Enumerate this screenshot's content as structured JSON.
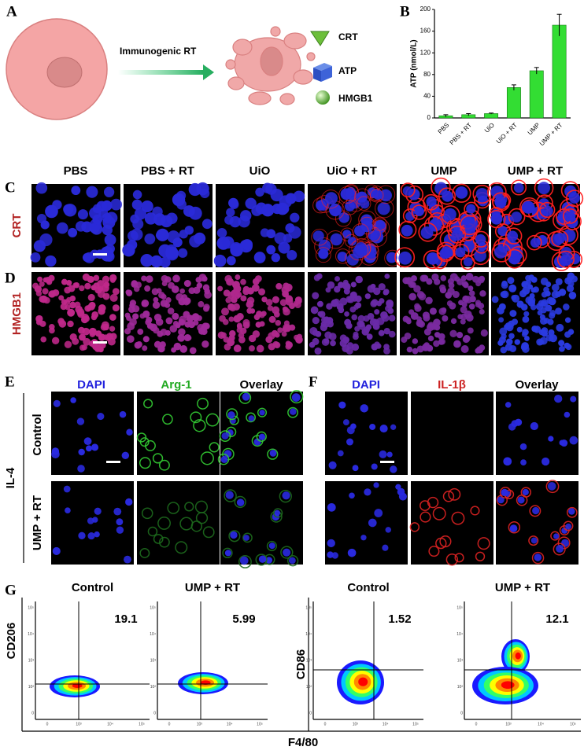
{
  "panel_labels": [
    "A",
    "B",
    "C",
    "D",
    "E",
    "F",
    "G"
  ],
  "panel_a": {
    "arrow_label": "Immunogenic RT",
    "legend": [
      "CRT",
      "ATP",
      "HMGB1"
    ]
  },
  "chart_data": {
    "type": "bar",
    "ylabel": "ATP (nmol/L)",
    "categories": [
      "PBS",
      "PBS + RT",
      "UiO",
      "UiO + RT",
      "UMP",
      "UMP + RT"
    ],
    "values": [
      4,
      6,
      8,
      56,
      87,
      171
    ],
    "errors": [
      2,
      2,
      1,
      5,
      6,
      20
    ],
    "color": "#33dd33",
    "ylim": [
      0,
      200
    ],
    "yticks": [
      0,
      40,
      80,
      120,
      160,
      200
    ]
  },
  "panel_cd": {
    "columns": [
      "PBS",
      "PBS + RT",
      "UiO",
      "UiO + RT",
      "UMP",
      "UMP + RT"
    ],
    "rows": [
      "CRT",
      "HMGB1"
    ]
  },
  "panel_e": {
    "group": "IL-4",
    "columns": [
      "DAPI",
      "Arg-1",
      "Overlay"
    ],
    "rows": [
      "Control",
      "UMP + RT"
    ]
  },
  "panel_f": {
    "columns": [
      "DAPI",
      "IL-1β",
      "Overlay"
    ]
  },
  "panel_g": {
    "columns": [
      "Control",
      "UMP + RT",
      "Control",
      "UMP + RT"
    ],
    "quadrant_values": [
      19.1,
      5.99,
      1.52,
      12.1
    ],
    "y_labels": [
      "CD206",
      "CD86"
    ],
    "x_label": "F4/80",
    "x_ticks": [
      "0",
      "10³",
      "10⁴",
      "10⁵"
    ],
    "y_ticks": [
      "10⁵",
      "10⁴",
      "10³",
      "10²",
      "0"
    ]
  }
}
